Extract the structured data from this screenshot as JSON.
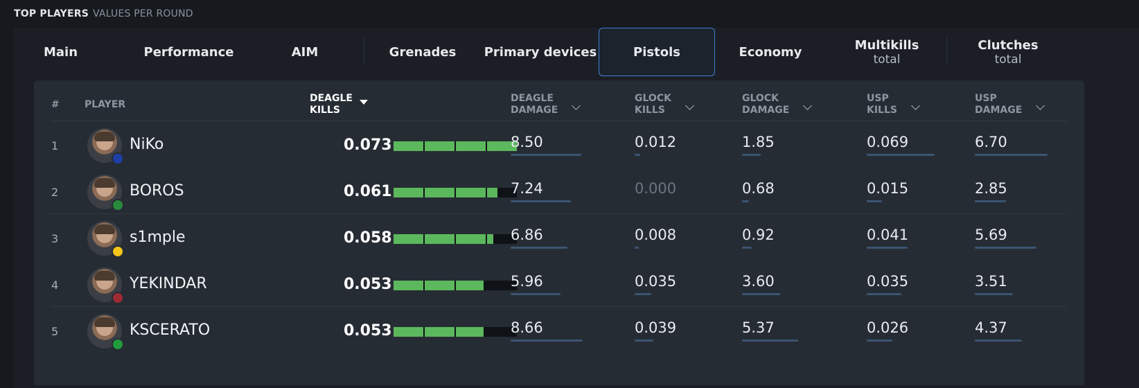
{
  "heading": {
    "main": "TOP PLAYERS",
    "sub": "VALUES PER ROUND"
  },
  "tabs": [
    {
      "label": "Main",
      "sub": "",
      "active": false
    },
    {
      "label": "Performance",
      "sub": "",
      "active": false
    },
    {
      "label": "AIM",
      "sub": "",
      "active": false
    },
    {
      "label": "Grenades",
      "sub": "",
      "active": false
    },
    {
      "label": "Primary devices",
      "sub": "",
      "active": false
    },
    {
      "label": "Pistols",
      "sub": "",
      "active": true
    },
    {
      "label": "Economy",
      "sub": "",
      "active": false
    },
    {
      "label": "Multikills",
      "sub": "total",
      "active": false
    },
    {
      "label": "Clutches",
      "sub": "total",
      "active": false
    }
  ],
  "columns": {
    "rank": "#",
    "player": "PLAYER",
    "deagle_kills": [
      "DEAGLE",
      "KILLS"
    ],
    "deagle_damage": [
      "DEAGLE",
      "DAMAGE"
    ],
    "glock_kills": [
      "GLOCK",
      "KILLS"
    ],
    "glock_damage": [
      "GLOCK",
      "DAMAGE"
    ],
    "usp_kills": [
      "USP",
      "KILLS"
    ],
    "usp_damage": [
      "USP",
      "DAMAGE"
    ]
  },
  "sort": {
    "column": "deagle_kills",
    "direction": "desc"
  },
  "rows": [
    {
      "rank": "1",
      "name": "NiKo",
      "flag": "bosnia",
      "deagle_kills": "0.073",
      "deagle_kills_fill": 1.0,
      "deagle_damage": "8.50",
      "deagle_damage_fill": 0.98,
      "glock_kills": "0.012",
      "glock_kills_fill": 0.16,
      "glock_damage": "1.85",
      "glock_damage_fill": 0.22,
      "usp_kills": "0.069",
      "usp_kills_fill": 1.0,
      "usp_damage": "6.70",
      "usp_damage_fill": 1.0
    },
    {
      "rank": "2",
      "name": "BOROS",
      "flag": "jordan",
      "deagle_kills": "0.061",
      "deagle_kills_fill": 0.84,
      "deagle_damage": "7.24",
      "deagle_damage_fill": 0.84,
      "glock_kills": "0.000",
      "glock_kills_fill": 0,
      "glock_damage": "0.68",
      "glock_damage_fill": 0.08,
      "usp_kills": "0.015",
      "usp_kills_fill": 0.22,
      "usp_damage": "2.85",
      "usp_damage_fill": 0.43
    },
    {
      "rank": "3",
      "name": "s1mple",
      "flag": "ukraine",
      "deagle_kills": "0.058",
      "deagle_kills_fill": 0.8,
      "deagle_damage": "6.86",
      "deagle_damage_fill": 0.79,
      "glock_kills": "0.008",
      "glock_kills_fill": 0.11,
      "glock_damage": "0.92",
      "glock_damage_fill": 0.11,
      "usp_kills": "0.041",
      "usp_kills_fill": 0.6,
      "usp_damage": "5.69",
      "usp_damage_fill": 0.85
    },
    {
      "rank": "4",
      "name": "YEKINDAR",
      "flag": "latvia",
      "deagle_kills": "0.053",
      "deagle_kills_fill": 0.73,
      "deagle_damage": "5.96",
      "deagle_damage_fill": 0.69,
      "glock_kills": "0.035",
      "glock_kills_fill": 0.48,
      "glock_damage": "3.60",
      "glock_damage_fill": 0.44,
      "usp_kills": "0.035",
      "usp_kills_fill": 0.51,
      "usp_damage": "3.51",
      "usp_damage_fill": 0.52
    },
    {
      "rank": "5",
      "name": "KSCERATO",
      "flag": "brazil",
      "deagle_kills": "0.053",
      "deagle_kills_fill": 0.73,
      "deagle_damage": "8.66",
      "deagle_damage_fill": 1.0,
      "glock_kills": "0.039",
      "glock_kills_fill": 0.54,
      "glock_damage": "5.37",
      "glock_damage_fill": 0.65,
      "usp_kills": "0.026",
      "usp_kills_fill": 0.38,
      "usp_damage": "4.37",
      "usp_damage_fill": 0.65
    }
  ],
  "colors": {
    "accent_blue": "#3e7fd6",
    "bar_green": "#5cb85c",
    "underline_blue": "#3c5572",
    "flags": {
      "bosnia": "#1f3fa8",
      "jordan": "#2a8a3c",
      "ukraine": "#f5c518",
      "latvia": "#9e2a33",
      "brazil": "#1f9d3c"
    }
  }
}
